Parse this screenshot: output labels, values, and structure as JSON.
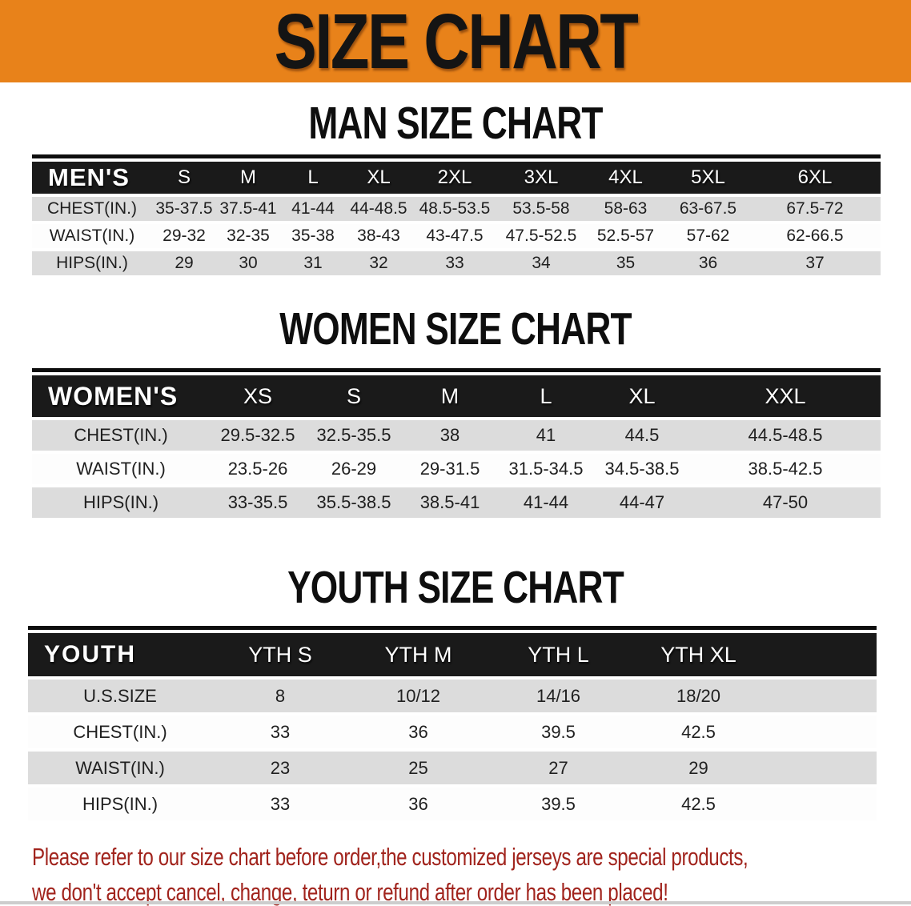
{
  "banner": {
    "title": "SIZE CHART",
    "bg_color": "#E8821A",
    "text_color": "#141414"
  },
  "sections": [
    {
      "title": "MAN SIZE CHART",
      "header_label": "MEN'S",
      "columns": [
        "S",
        "M",
        "L",
        "XL",
        "2XL",
        "3XL",
        "4XL",
        "5XL",
        "6XL"
      ],
      "rows": [
        {
          "label": "CHEST(IN.)",
          "values": [
            "35-37.5",
            "37.5-41",
            "41-44",
            "44-48.5",
            "48.5-53.5",
            "53.5-58",
            "58-63",
            "63-67.5",
            "67.5-72"
          ]
        },
        {
          "label": "WAIST(IN.)",
          "values": [
            "29-32",
            "32-35",
            "35-38",
            "38-43",
            "43-47.5",
            "47.5-52.5",
            "52.5-57",
            "57-62",
            "62-66.5"
          ]
        },
        {
          "label": "HIPS(IN.)",
          "values": [
            "29",
            "30",
            "31",
            "32",
            "33",
            "34",
            "35",
            "36",
            "37"
          ]
        }
      ]
    },
    {
      "title": "WOMEN SIZE CHART",
      "header_label": "WOMEN'S",
      "columns": [
        "XS",
        "S",
        "M",
        "L",
        "XL",
        "XXL"
      ],
      "rows": [
        {
          "label": "CHEST(IN.)",
          "values": [
            "29.5-32.5",
            "32.5-35.5",
            "38",
            "41",
            "44.5",
            "44.5-48.5"
          ]
        },
        {
          "label": "WAIST(IN.)",
          "values": [
            "23.5-26",
            "26-29",
            "29-31.5",
            "31.5-34.5",
            "34.5-38.5",
            "38.5-42.5"
          ]
        },
        {
          "label": "HIPS(IN.)",
          "values": [
            "33-35.5",
            "35.5-38.5",
            "38.5-41",
            "41-44",
            "44-47",
            "47-50"
          ]
        }
      ]
    },
    {
      "title": "YOUTH SIZE CHART",
      "header_label": "YOUTH",
      "columns": [
        "YTH S",
        "YTH M",
        "YTH L",
        "YTH XL"
      ],
      "rows": [
        {
          "label": "U.S.SIZE",
          "values": [
            "8",
            "10/12",
            "14/16",
            "18/20"
          ]
        },
        {
          "label": "CHEST(IN.)",
          "values": [
            "33",
            "36",
            "39.5",
            "42.5"
          ]
        },
        {
          "label": "WAIST(IN.)",
          "values": [
            "23",
            "25",
            "27",
            "29"
          ]
        },
        {
          "label": "HIPS(IN.)",
          "values": [
            "33",
            "36",
            "39.5",
            "42.5"
          ]
        }
      ]
    }
  ],
  "disclaimer": {
    "line1": "Please refer to our size chart before order,the customized jerseys are special products,",
    "line2": "we don't accept cancel, change, teturn or refund after order has been placed!",
    "color": "#A1241D"
  },
  "colors": {
    "banner_orange": "#E8821A",
    "table_header_black": "#1A1A1A",
    "row_gray": "#DCDCDC",
    "row_white": "#FDFDFD"
  }
}
